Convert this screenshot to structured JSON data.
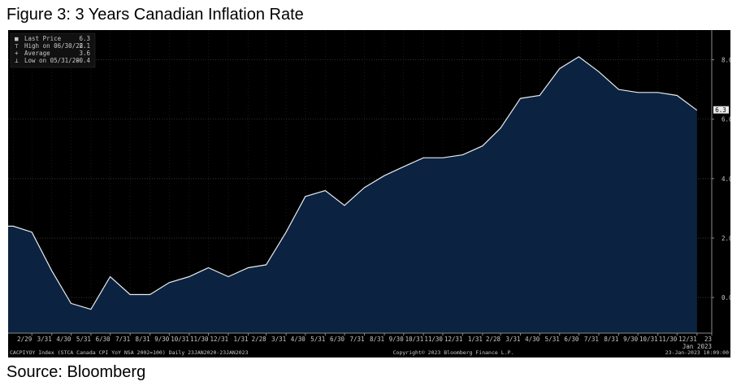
{
  "figure_title": "Figure 3: 3 Years Canadian Inflation Rate",
  "source": "Source: Bloomberg",
  "legend": [
    {
      "glyph": "■",
      "label": "Last Price",
      "value": "6.3"
    },
    {
      "glyph": "⊤",
      "label": "High on 06/30/22",
      "value": "8.1"
    },
    {
      "glyph": "+",
      "label": "Average",
      "value": "3.6"
    },
    {
      "glyph": "⊥",
      "label": "Low on 05/31/20",
      "value": "-0.4"
    }
  ],
  "last_price_tag": "6.3",
  "footer": {
    "left": "CACPIYOY Index (STCA Canada CPI YoY NSA 2002=100)  Daily 23JAN2020-23JAN2023",
    "center": "Copyright© 2023 Bloomberg Finance L.P.",
    "right": "23-Jan-2023 10:09:00"
  },
  "colors": {
    "background": "#000000",
    "area_fill": "#0b2340",
    "line": "#e8ecf0",
    "grid": "#4a4a4a",
    "text": "#c8c8c8"
  },
  "chart_data": {
    "type": "area",
    "title": "",
    "xlabel": "",
    "ylabel": "",
    "ylim": [
      -1.2,
      9.0
    ],
    "yticks": [
      0.0,
      2.0,
      4.0,
      6.0,
      8.0
    ],
    "ytick_labels": [
      "0.0",
      "2.0",
      "4.0",
      "6.0",
      "8.0"
    ],
    "grid": true,
    "legend_position": "top-left",
    "x_tick_labels": [
      "2/29",
      "3/31",
      "4/30",
      "5/31",
      "6/30",
      "7/31",
      "8/31",
      "9/30",
      "10/31",
      "11/30",
      "12/31",
      "1/31",
      "2/28",
      "3/31",
      "4/30",
      "5/31",
      "6/30",
      "7/31",
      "8/31",
      "9/30",
      "10/31",
      "11/30",
      "12/31",
      "1/31",
      "2/28",
      "3/31",
      "4/30",
      "5/31",
      "6/30",
      "7/31",
      "8/31",
      "9/30",
      "10/31",
      "11/30",
      "12/31",
      "23"
    ],
    "x_year_label": "Jan 2023",
    "x": [
      "2020-01-23",
      "2020-01-31",
      "2020-02-29",
      "2020-03-31",
      "2020-04-30",
      "2020-05-31",
      "2020-06-30",
      "2020-07-31",
      "2020-08-31",
      "2020-09-30",
      "2020-10-31",
      "2020-11-30",
      "2020-12-31",
      "2021-01-31",
      "2021-02-28",
      "2021-03-31",
      "2021-04-30",
      "2021-05-31",
      "2021-06-30",
      "2021-07-31",
      "2021-08-31",
      "2021-09-30",
      "2021-10-31",
      "2021-11-30",
      "2021-12-31",
      "2022-01-31",
      "2022-02-28",
      "2022-03-31",
      "2022-04-30",
      "2022-05-31",
      "2022-06-30",
      "2022-07-31",
      "2022-08-31",
      "2022-09-30",
      "2022-10-31",
      "2022-11-30",
      "2022-12-31"
    ],
    "series": [
      {
        "values": [
          2.4,
          2.4,
          2.2,
          0.9,
          -0.2,
          -0.4,
          0.7,
          0.1,
          0.1,
          0.5,
          0.7,
          1.0,
          0.7,
          1.0,
          1.1,
          2.2,
          3.4,
          3.6,
          3.1,
          3.7,
          4.1,
          4.4,
          4.7,
          4.7,
          4.8,
          5.1,
          5.7,
          6.7,
          6.8,
          7.7,
          8.1,
          7.6,
          7.0,
          6.9,
          6.9,
          6.8,
          6.3
        ]
      }
    ]
  }
}
